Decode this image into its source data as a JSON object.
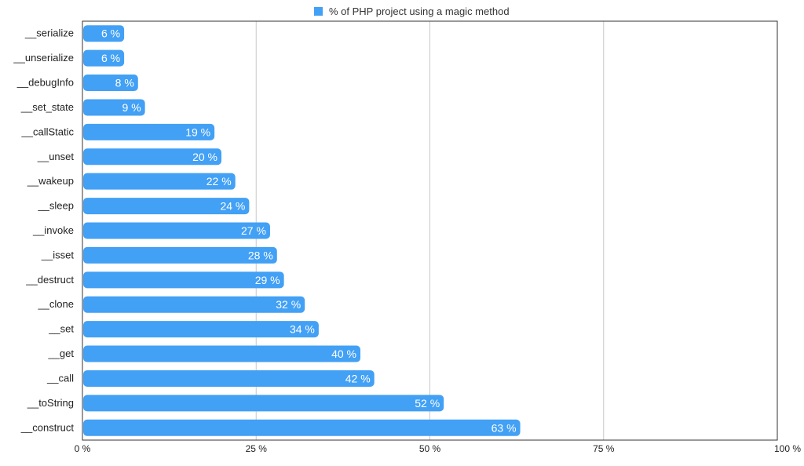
{
  "chart_data": {
    "type": "bar",
    "orientation": "horizontal",
    "categories": [
      "__serialize",
      "__unserialize",
      "__debugInfo",
      "__set_state",
      "__callStatic",
      "__unset",
      "__wakeup",
      "__sleep",
      "__invoke",
      "__isset",
      "__destruct",
      "__clone",
      "__set",
      "__get",
      "__call",
      "__toString",
      "__construct"
    ],
    "series": [
      {
        "name": "% of PHP project using a magic method",
        "values": [
          6,
          6,
          8,
          9,
          19,
          20,
          22,
          24,
          27,
          28,
          29,
          32,
          34,
          40,
          42,
          52,
          63
        ],
        "labels": [
          "6 %",
          "6 %",
          "8 %",
          "9 %",
          "19 %",
          "20 %",
          "22 %",
          "24 %",
          "27 %",
          "28 %",
          "29 %",
          "32 %",
          "34 %",
          "40 %",
          "42 %",
          "52 %",
          "63 %"
        ],
        "color": "#42a0f5"
      }
    ],
    "xlim": [
      0,
      100
    ],
    "x_ticks": [
      0,
      25,
      50,
      75,
      100
    ],
    "x_tick_labels": [
      "0 %",
      "25 %",
      "50 %",
      "75 %",
      "100 %"
    ],
    "grid": "vertical",
    "legend_position": "top"
  }
}
